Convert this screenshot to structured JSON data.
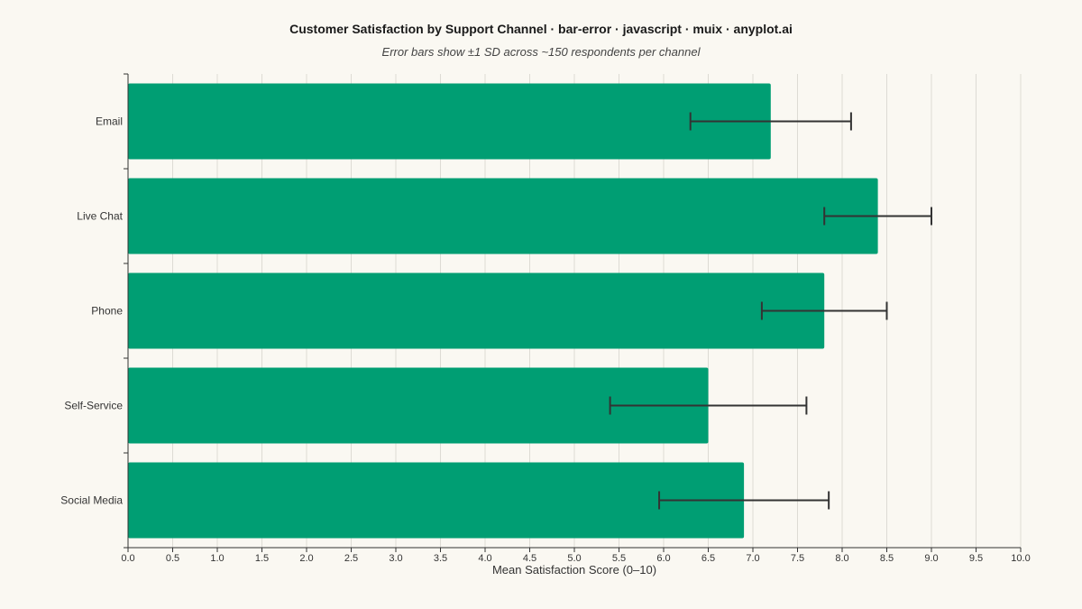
{
  "chart_data": {
    "type": "bar",
    "orientation": "horizontal",
    "title": "Customer Satisfaction by Support Channel · bar-error · javascript · muix · anyplot.ai",
    "subtitle": "Error bars show ±1 SD across ~150 respondents per channel",
    "xlabel": "Mean Satisfaction Score (0–10)",
    "ylabel": "",
    "xlim": [
      0,
      10
    ],
    "x_ticks": [
      "0.0",
      "0.5",
      "1.0",
      "1.5",
      "2.0",
      "2.5",
      "3.0",
      "3.5",
      "4.0",
      "4.5",
      "5.0",
      "5.5",
      "6.0",
      "6.5",
      "7.0",
      "7.5",
      "8.0",
      "8.5",
      "9.0",
      "9.5",
      "10.0"
    ],
    "grid": "vertical",
    "legend": "none",
    "categories": [
      "Email",
      "Live Chat",
      "Phone",
      "Self-Service",
      "Social Media"
    ],
    "values": [
      7.2,
      8.4,
      7.8,
      6.5,
      6.9
    ],
    "error_sd": [
      0.9,
      0.6,
      0.7,
      1.1,
      0.95
    ],
    "colors": {
      "bar": "#009e73",
      "error": "#333333",
      "grid": "#dddbd4",
      "axis": "#333333",
      "background": "#faf8f2"
    }
  }
}
